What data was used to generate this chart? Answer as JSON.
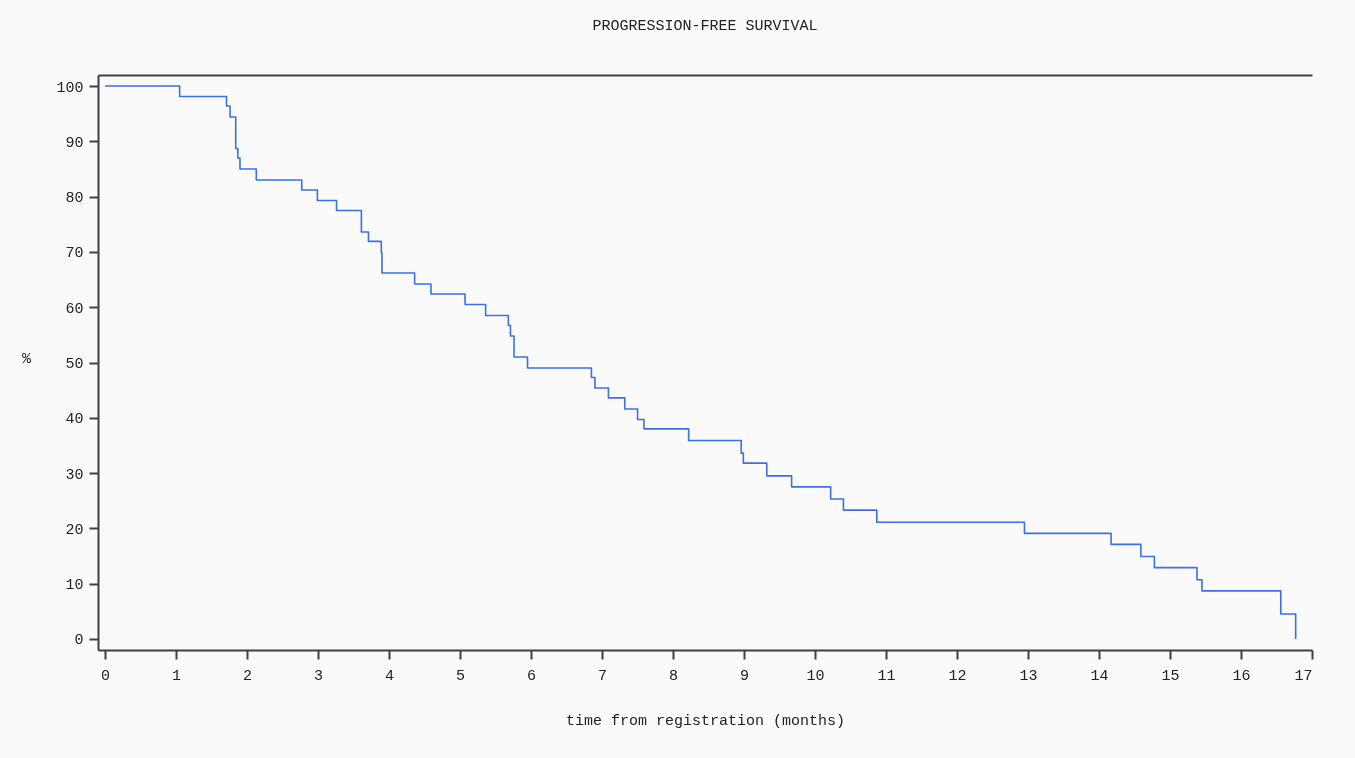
{
  "chart_data": {
    "type": "step",
    "title": "PROGRESSION-FREE SURVIVAL",
    "xlabel": "time from registration (months)",
    "ylabel": "%",
    "x": [
      0,
      1.05,
      1.71,
      1.76,
      1.84,
      1.87,
      1.9,
      2.13,
      2.77,
      2.99,
      3.26,
      3.61,
      3.71,
      3.89,
      3.9,
      4.36,
      4.59,
      5.07,
      5.36,
      5.68,
      5.71,
      5.76,
      5.95,
      6.85,
      6.9,
      7.09,
      7.32,
      7.5,
      7.59,
      8.22,
      8.96,
      8.99,
      9.32,
      9.67,
      10.22,
      10.4,
      10.87,
      12.95,
      14.17,
      14.59,
      14.78,
      15.38,
      15.45,
      16.56,
      16.77
    ],
    "series": [
      {
        "color": "#3c6fe6",
        "values": [
          100,
          98.1,
          96.4,
          94.4,
          88.7,
          87,
          85,
          83,
          81.2,
          79.3,
          77.5,
          73.6,
          71.9,
          69.9,
          66.2,
          64.2,
          62.4,
          60.5,
          58.5,
          56.7,
          54.8,
          51,
          49,
          47.3,
          45.4,
          43.6,
          41.6,
          39.7,
          38,
          35.9,
          33.6,
          31.8,
          29.5,
          27.5,
          25.3,
          23.3,
          21.1,
          19.1,
          17.1,
          14.9,
          12.9,
          10.7,
          8.7,
          4.5,
          0
        ]
      }
    ],
    "xlim": [
      -0.1,
      17
    ],
    "ylim": [
      -2,
      102
    ],
    "xticks": [
      0,
      1,
      2,
      3,
      4,
      5,
      6,
      7,
      8,
      9,
      10,
      11,
      12,
      13,
      14,
      15,
      16,
      17
    ],
    "yticks": [
      0,
      10,
      20,
      30,
      40,
      50,
      60,
      70,
      80,
      90,
      100
    ]
  }
}
